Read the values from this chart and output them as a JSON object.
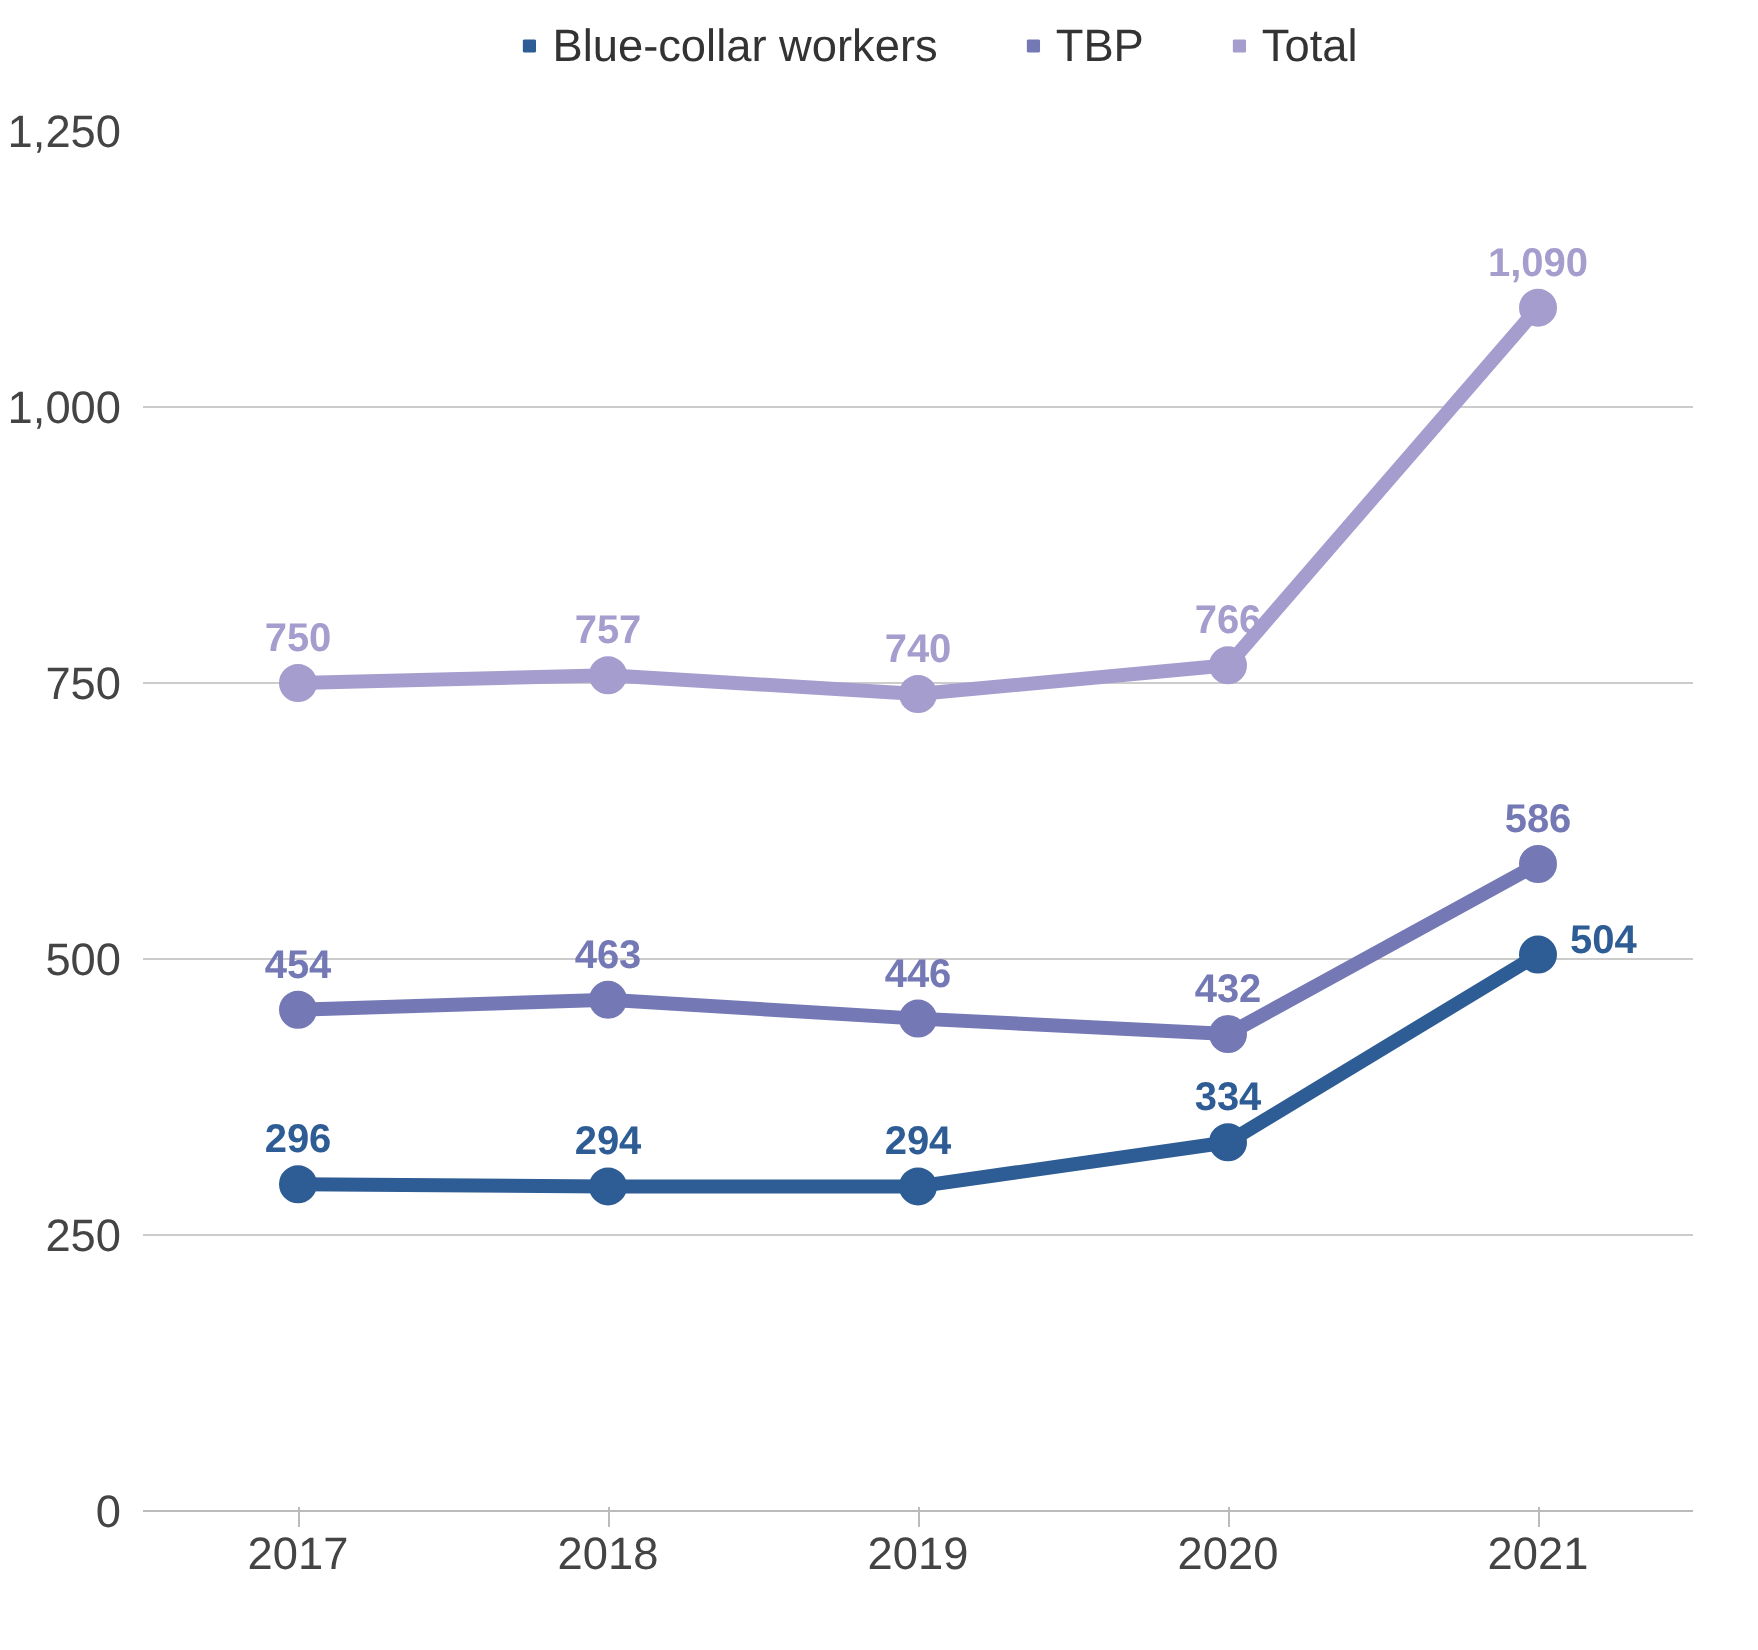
{
  "chart_data": {
    "type": "line",
    "categories": [
      "2017",
      "2018",
      "2019",
      "2020",
      "2021"
    ],
    "series": [
      {
        "name": "Blue-collar workers",
        "color": "#2e5c94",
        "values": [
          296,
          294,
          294,
          334,
          504
        ],
        "value_labels": [
          "296",
          "294",
          "294",
          "334",
          "504"
        ]
      },
      {
        "name": "TBP",
        "color": "#7479b5",
        "values": [
          454,
          463,
          446,
          432,
          586
        ],
        "value_labels": [
          "454",
          "463",
          "446",
          "432",
          "586"
        ]
      },
      {
        "name": "Total",
        "color": "#a59dce",
        "values": [
          750,
          757,
          740,
          766,
          1090
        ],
        "value_labels": [
          "750",
          "757",
          "740",
          "766",
          "1,090"
        ]
      }
    ],
    "ylim": [
      0,
      1250
    ],
    "yticks": [
      0,
      {
        "value": 250,
        "label": "250"
      },
      {
        "value": 500,
        "label": "500"
      },
      {
        "value": 750,
        "label": "750"
      },
      {
        "value": 1000,
        "label": "1,000"
      },
      {
        "value": 1250,
        "label": "1,250"
      }
    ],
    "grid": "y",
    "legend": "top",
    "marker": "circle",
    "line_style": "solid"
  }
}
